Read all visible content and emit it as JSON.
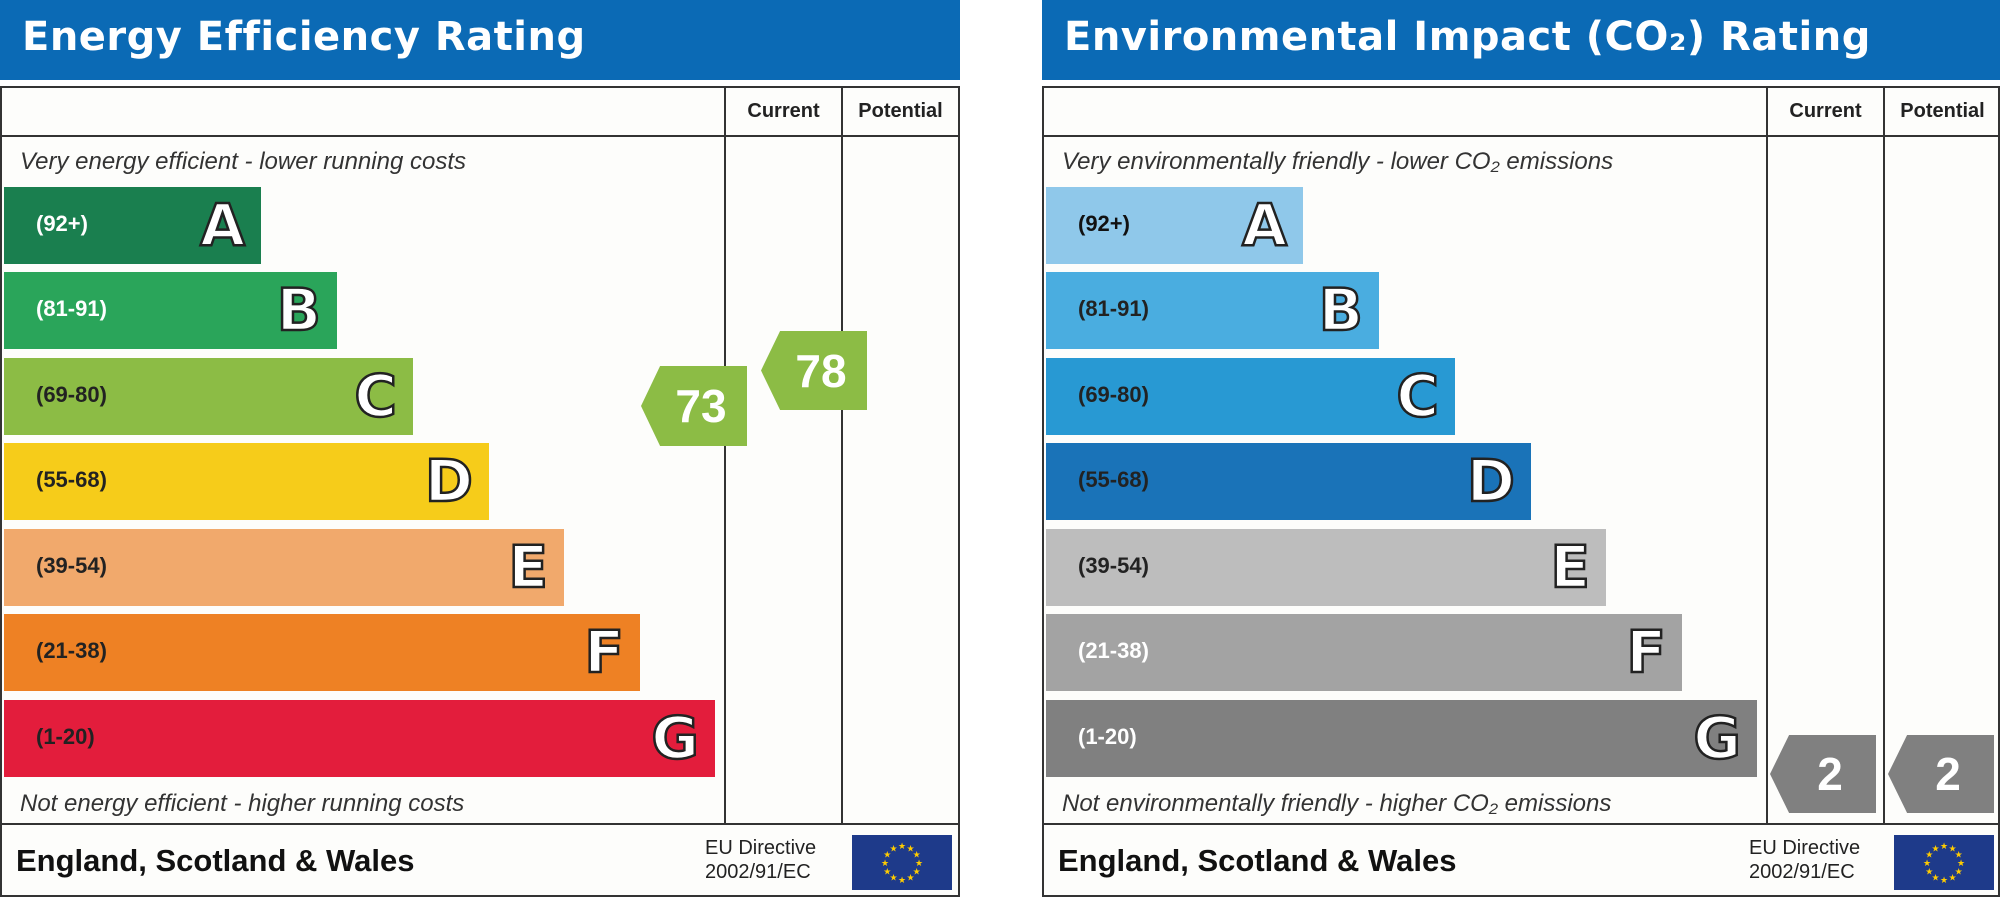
{
  "energy": {
    "title": "Energy Efficiency Rating",
    "col_current": "Current",
    "col_potential": "Potential",
    "top_note": "Very energy efficient - lower running costs",
    "bottom_note": "Not energy efficient - higher running costs",
    "bands": [
      {
        "range": "(92+)",
        "letter": "A",
        "color": "#1a7f4f",
        "text_color": "#ffffff"
      },
      {
        "range": "(81-91)",
        "letter": "B",
        "color": "#2aa55a",
        "text_color": "#ffffff"
      },
      {
        "range": "(69-80)",
        "letter": "C",
        "color": "#8cbc45",
        "text_color": "#222222"
      },
      {
        "range": "(55-68)",
        "letter": "D",
        "color": "#f6cc1a",
        "text_color": "#222222"
      },
      {
        "range": "(39-54)",
        "letter": "E",
        "color": "#f1a96c",
        "text_color": "#222222"
      },
      {
        "range": "(21-38)",
        "letter": "F",
        "color": "#ee8124",
        "text_color": "#222222"
      },
      {
        "range": "(1-20)",
        "letter": "G",
        "color": "#e31d3c",
        "text_color": "#222222"
      }
    ],
    "current": {
      "value": "73",
      "band": "C",
      "color": "#8cbc45"
    },
    "potential": {
      "value": "78",
      "band": "C",
      "color": "#8cbc45"
    },
    "footer": "England, Scotland & Wales",
    "eu_line1": "EU Directive",
    "eu_line2": "2002/91/EC"
  },
  "co2": {
    "title": "Environmental Impact (CO₂) Rating",
    "col_current": "Current",
    "col_potential": "Potential",
    "top_note": "Very environmentally friendly - lower CO₂ emissions",
    "bottom_note": "Not environmentally friendly - higher CO₂ emissions",
    "bands": [
      {
        "range": "(92+)",
        "letter": "A",
        "color": "#8fc8ea",
        "text_color": "#111111"
      },
      {
        "range": "(81-91)",
        "letter": "B",
        "color": "#4aade0",
        "text_color": "#222222"
      },
      {
        "range": "(69-80)",
        "letter": "C",
        "color": "#2899d3",
        "text_color": "#222222"
      },
      {
        "range": "(55-68)",
        "letter": "D",
        "color": "#1a73b8",
        "text_color": "#222222"
      },
      {
        "range": "(39-54)",
        "letter": "E",
        "color": "#bdbdbd",
        "text_color": "#222222"
      },
      {
        "range": "(21-38)",
        "letter": "F",
        "color": "#a3a3a3",
        "text_color": "#ffffff"
      },
      {
        "range": "(1-20)",
        "letter": "G",
        "color": "#808080",
        "text_color": "#ffffff"
      }
    ],
    "current": {
      "value": "2",
      "band": "G",
      "color": "#808080"
    },
    "potential": {
      "value": "2",
      "band": "G",
      "color": "#808080"
    },
    "footer": "England, Scotland & Wales",
    "eu_line1": "EU Directive",
    "eu_line2": "2002/91/EC"
  }
}
